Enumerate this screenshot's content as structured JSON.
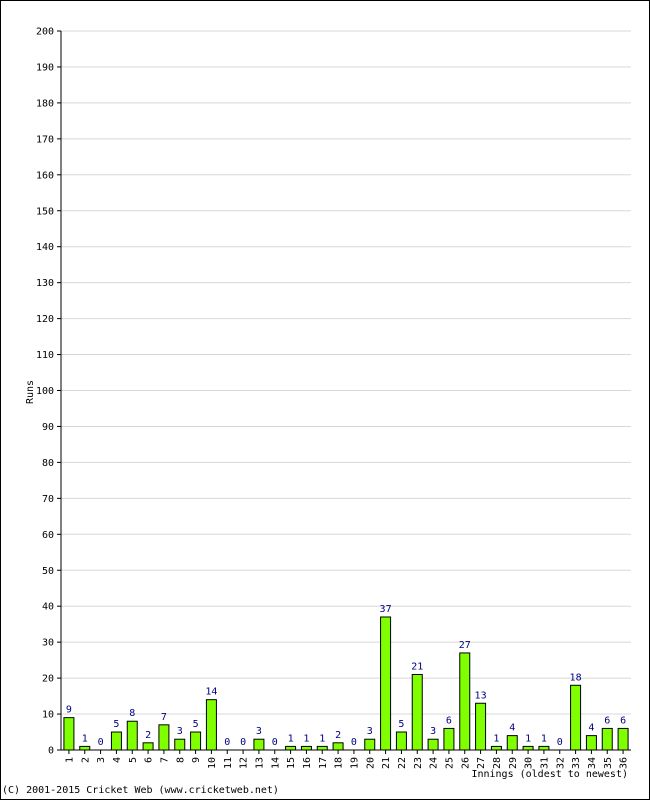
{
  "chart_data": {
    "type": "bar",
    "title": "",
    "xlabel": "Innings (oldest to newest)",
    "ylabel": "Runs",
    "ylim": [
      0,
      200
    ],
    "ytick_step": 10,
    "grid": true,
    "categories": [
      "1",
      "2",
      "3",
      "4",
      "5",
      "6",
      "7",
      "8",
      "9",
      "10",
      "11",
      "12",
      "13",
      "14",
      "15",
      "16",
      "17",
      "18",
      "19",
      "20",
      "21",
      "22",
      "23",
      "24",
      "25",
      "26",
      "27",
      "28",
      "29",
      "30",
      "31",
      "32",
      "33",
      "34",
      "35",
      "36"
    ],
    "values": [
      9,
      1,
      0,
      5,
      8,
      2,
      7,
      3,
      5,
      14,
      0,
      0,
      3,
      0,
      1,
      1,
      1,
      2,
      0,
      3,
      37,
      5,
      21,
      3,
      6,
      27,
      13,
      1,
      4,
      1,
      1,
      0,
      18,
      4,
      6,
      6
    ],
    "colors": {
      "bar_fill": "#80ff00",
      "bar_stroke": "#000000",
      "data_label": "#000080",
      "grid": "#d8d8d8"
    }
  },
  "footer": {
    "copyright": "(C) 2001-2015 Cricket Web (www.cricketweb.net)"
  }
}
